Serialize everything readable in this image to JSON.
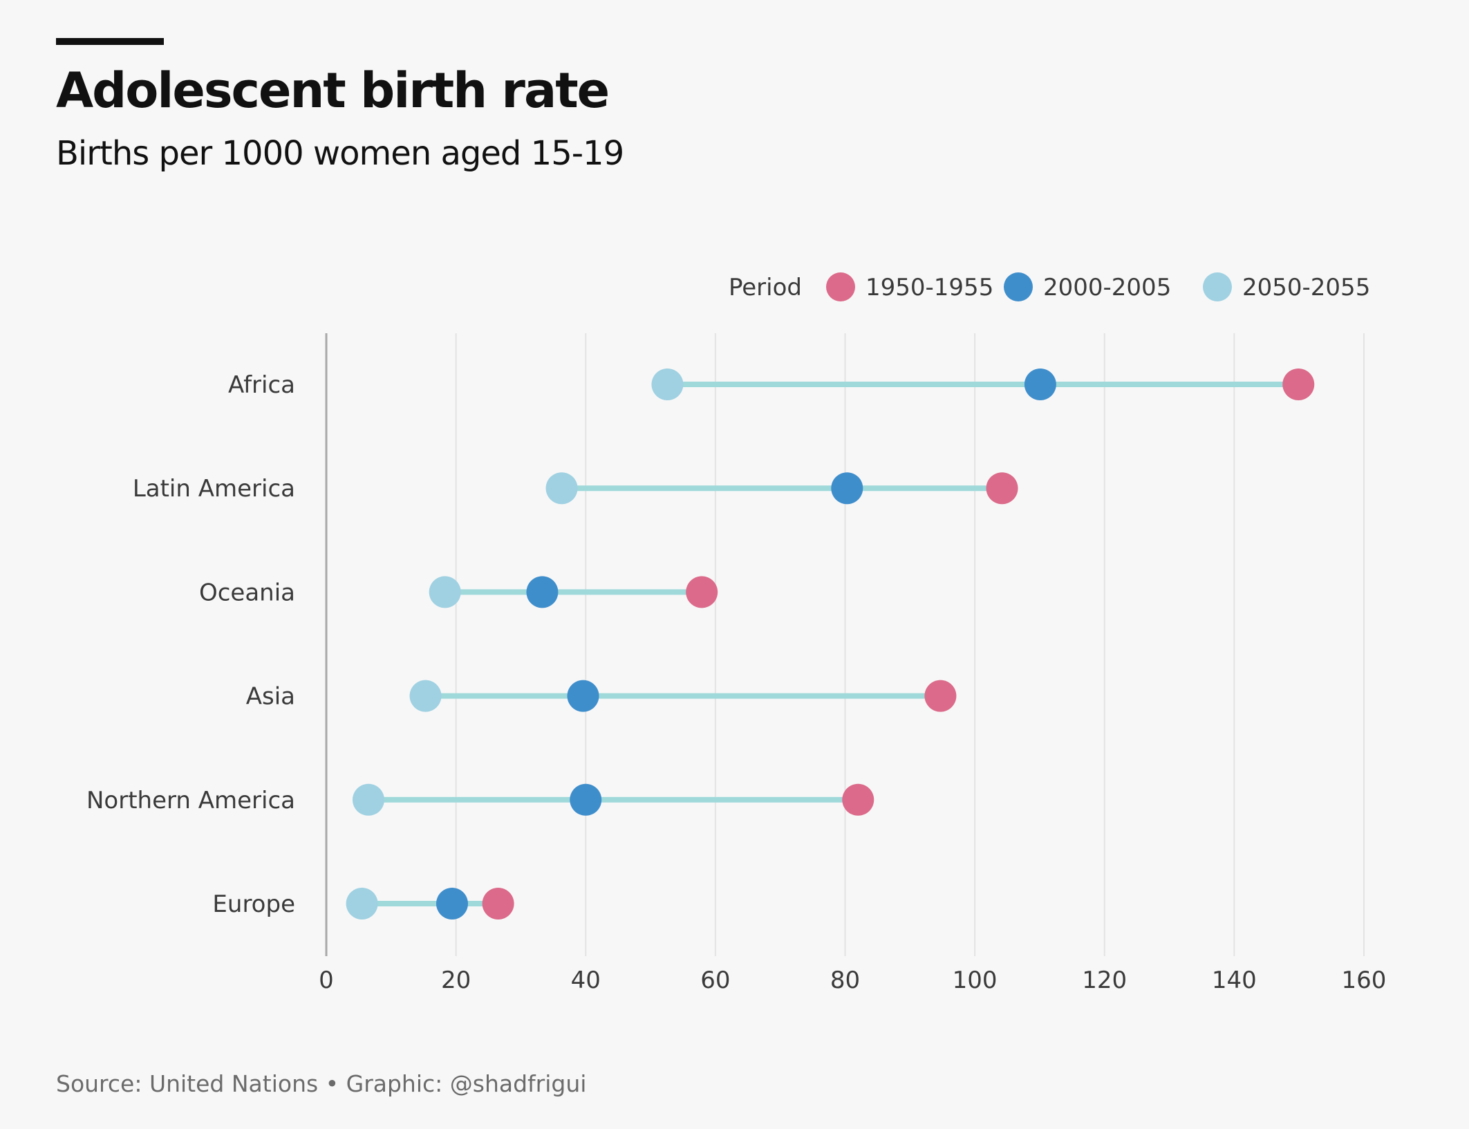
{
  "header": {
    "title": "Adolescent birth rate",
    "subtitle": "Births per 1000 women aged 15-19"
  },
  "footer": {
    "source": "Source: United Nations • Graphic: @shadfrigui"
  },
  "legend": {
    "title": "Period"
  },
  "colors": {
    "1950-1955": "#dc6a8a",
    "2000-2005": "#3f8ecc",
    "2050-2055": "#9fd1e2",
    "connector": "#9fd9da",
    "gridline": "#e3e3e3",
    "baseline": "#a8a8a8"
  },
  "chart_data": {
    "type": "dumbbell",
    "title": "Adolescent birth rate",
    "subtitle": "Births per 1000 women aged 15-19",
    "xlim": [
      0,
      160
    ],
    "x_ticks": [
      0,
      20,
      40,
      60,
      80,
      100,
      120,
      140,
      160
    ],
    "grid": true,
    "legend_title": "Period",
    "legend_position": "top-right",
    "categories": [
      "Africa",
      "Latin America",
      "Oceania",
      "Asia",
      "Northern America",
      "Europe"
    ],
    "series": [
      {
        "name": "1950-1955",
        "values": [
          149.9,
          104.2,
          57.9,
          94.7,
          82.0,
          26.5
        ]
      },
      {
        "name": "2000-2005",
        "values": [
          110.1,
          80.3,
          33.3,
          39.6,
          40.0,
          19.4
        ]
      },
      {
        "name": "2050-2055",
        "values": [
          52.6,
          36.3,
          18.3,
          15.3,
          6.5,
          5.5
        ]
      }
    ]
  }
}
